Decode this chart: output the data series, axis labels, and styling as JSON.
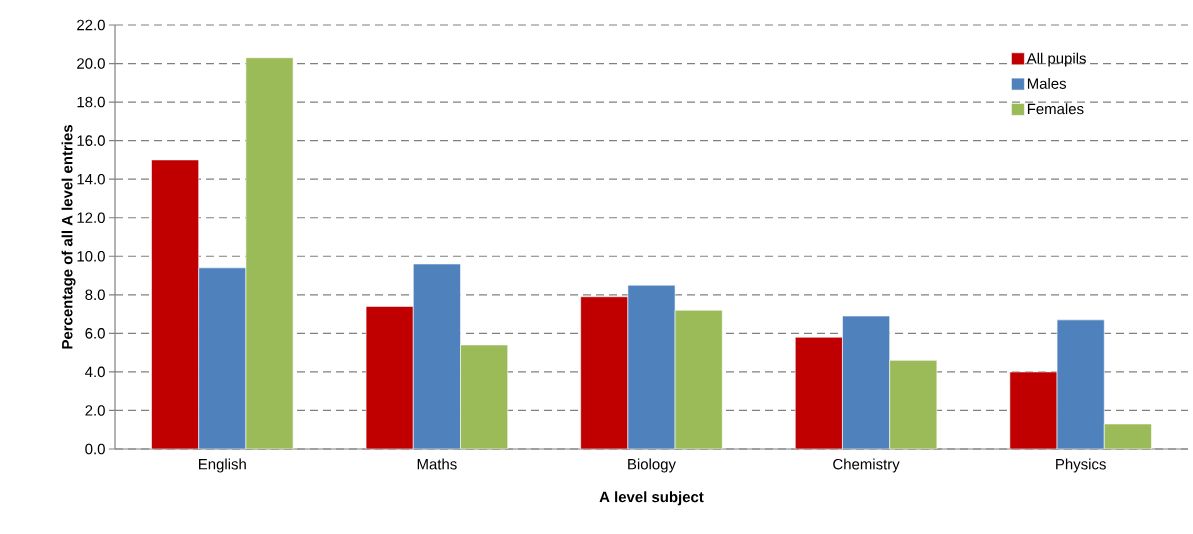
{
  "chart_data": {
    "type": "bar",
    "xlabel": "A level subject",
    "ylabel": "Percentage of all A level entries",
    "categories": [
      "English",
      "Maths",
      "Biology",
      "Chemistry",
      "Physics"
    ],
    "series": [
      {
        "name": "All pupils",
        "color": "#c00000",
        "values": [
          15.0,
          7.4,
          7.9,
          5.8,
          4.0
        ]
      },
      {
        "name": "Males",
        "color": "#4f81bd",
        "values": [
          9.4,
          9.6,
          8.5,
          6.9,
          6.7
        ]
      },
      {
        "name": "Females",
        "color": "#9bbb59",
        "values": [
          20.3,
          5.4,
          7.2,
          4.6,
          1.3
        ]
      }
    ],
    "ylim": [
      0,
      22
    ],
    "yticks": [
      {
        "value": 0,
        "label": "0.0"
      },
      {
        "value": 2,
        "label": "2.0"
      },
      {
        "value": 4,
        "label": "4.0"
      },
      {
        "value": 6,
        "label": "6.0"
      },
      {
        "value": 8,
        "label": "8.0"
      },
      {
        "value": 10,
        "label": "10.0"
      },
      {
        "value": 12,
        "label": "12.0"
      },
      {
        "value": 14,
        "label": "14.0"
      },
      {
        "value": 16,
        "label": "16.0"
      },
      {
        "value": 18,
        "label": "18.0"
      },
      {
        "value": 20,
        "label": "20.0"
      },
      {
        "value": 22,
        "label": "22.0"
      }
    ],
    "grid": "y",
    "legend": "top right"
  }
}
